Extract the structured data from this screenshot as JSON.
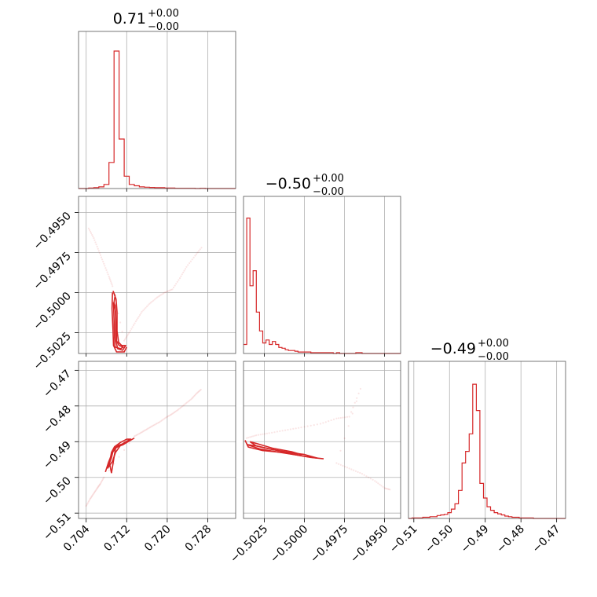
{
  "chart_data": {
    "type": "corner",
    "series_color": "#d62728",
    "grid": true,
    "panel_titles": [
      {
        "main": "0.71",
        "sup": "+0.00",
        "sub": "−0.00"
      },
      {
        "main": "−0.50",
        "sup": "+0.00",
        "sub": "−0.00"
      },
      {
        "main": "−0.49",
        "sup": "+0.00",
        "sub": "−0.00"
      }
    ],
    "params": [
      {
        "range": [
          0.7025,
          0.7335
        ],
        "ticks": [
          0.704,
          0.712,
          0.72,
          0.728
        ],
        "tick_labels": [
          "0.704",
          "0.712",
          "0.720",
          "0.728"
        ]
      },
      {
        "range": [
          -0.5038,
          -0.494
        ],
        "ticks": [
          -0.5025,
          -0.5,
          -0.4975,
          -0.495
        ],
        "tick_labels": [
          "−0.5025",
          "−0.5000",
          "−0.4975",
          "−0.4950"
        ]
      },
      {
        "range": [
          -0.5115,
          -0.4675
        ],
        "ticks": [
          -0.51,
          -0.5,
          -0.49,
          -0.48,
          -0.47
        ],
        "tick_labels": [
          "−0.51",
          "−0.50",
          "−0.49",
          "−0.48",
          "−0.47"
        ]
      }
    ],
    "histograms": [
      {
        "param": 0,
        "bins": [
          0.7025,
          0.7035,
          0.7045,
          0.7055,
          0.7065,
          0.7075,
          0.7085,
          0.7095,
          0.7105,
          0.7115,
          0.7125,
          0.7135,
          0.7145,
          0.7155,
          0.7165,
          0.7175,
          0.7185,
          0.7195,
          0.7205,
          0.7215,
          0.7225,
          0.7235,
          0.7245,
          0.7255,
          0.7265,
          0.7275,
          0.7285,
          0.7295,
          0.7305,
          0.7315,
          0.7325,
          0.7335
        ],
        "counts": [
          0,
          0,
          2,
          3,
          6,
          15,
          95,
          500,
          180,
          45,
          15,
          10,
          6,
          5,
          4,
          3,
          3,
          2,
          2,
          1,
          1,
          1,
          1,
          0,
          1,
          0,
          0,
          0,
          0,
          0,
          0
        ],
        "ymax": 520
      },
      {
        "param": 1,
        "bins": [
          -0.5038,
          -0.5036,
          -0.5034,
          -0.5032,
          -0.503,
          -0.5028,
          -0.5026,
          -0.5024,
          -0.5022,
          -0.502,
          -0.5018,
          -0.5016,
          -0.5014,
          -0.5012,
          -0.501,
          -0.5008,
          -0.5006,
          -0.5004,
          -0.5002,
          -0.5,
          -0.4998,
          -0.4996,
          -0.4994,
          -0.4992,
          -0.499,
          -0.4988,
          -0.4986,
          -0.4984,
          -0.4982,
          -0.498,
          -0.4978,
          -0.4976,
          -0.4974,
          -0.4972,
          -0.497,
          -0.4968,
          -0.4966,
          -0.4964,
          -0.4962,
          -0.496,
          -0.4958,
          -0.4956,
          -0.4954,
          -0.4952,
          -0.495,
          -0.4948,
          -0.4946,
          -0.4944,
          -0.4942,
          -0.494
        ],
        "counts": [
          12,
          180,
          90,
          110,
          55,
          30,
          14,
          18,
          12,
          16,
          12,
          8,
          7,
          5,
          4,
          4,
          3,
          2,
          2,
          2,
          2,
          1,
          1,
          1,
          1,
          1,
          1,
          1,
          0,
          1,
          0,
          0,
          0,
          0,
          0,
          1,
          1,
          0,
          0,
          0,
          0,
          0,
          0,
          0,
          0,
          0,
          0,
          0,
          0
        ],
        "ymax": 190
      },
      {
        "param": 2,
        "bins": [
          -0.5115,
          -0.5105,
          -0.5095,
          -0.5085,
          -0.5075,
          -0.5065,
          -0.5055,
          -0.5045,
          -0.5035,
          -0.5025,
          -0.5015,
          -0.5005,
          -0.4995,
          -0.4985,
          -0.4975,
          -0.4965,
          -0.4955,
          -0.4945,
          -0.4935,
          -0.4925,
          -0.4915,
          -0.4905,
          -0.4895,
          -0.4885,
          -0.4875,
          -0.4865,
          -0.4855,
          -0.4845,
          -0.4835,
          -0.4825,
          -0.4815,
          -0.4805,
          -0.4795,
          -0.4785,
          -0.4775,
          -0.4765,
          -0.4755,
          -0.4745,
          -0.4735,
          -0.4725,
          -0.4715,
          -0.4705,
          -0.4695,
          -0.4685,
          -0.4675
        ],
        "counts": [
          0,
          1,
          1,
          1,
          2,
          2,
          3,
          3,
          5,
          6,
          7,
          10,
          16,
          25,
          48,
          95,
          115,
          145,
          230,
          185,
          60,
          35,
          20,
          14,
          10,
          8,
          6,
          4,
          3,
          2,
          2,
          1,
          1,
          1,
          1,
          0,
          0,
          0,
          0,
          0,
          0,
          0,
          0,
          0
        ],
        "ymax": 245
      }
    ],
    "pairs": [
      {
        "x_param": 0,
        "y_param": 1,
        "contours": [
          [
            [
              0.7093,
              -0.4999
            ],
            [
              0.7097,
              -0.5002
            ],
            [
              0.7095,
              -0.5006
            ],
            [
              0.7098,
              -0.5012
            ],
            [
              0.7098,
              -0.502
            ],
            [
              0.7099,
              -0.503
            ],
            [
              0.7102,
              -0.5035
            ],
            [
              0.7112,
              -0.5036
            ],
            [
              0.7118,
              -0.5033
            ],
            [
              0.711,
              -0.5033
            ],
            [
              0.7104,
              -0.5031
            ],
            [
              0.7101,
              -0.5024
            ],
            [
              0.7101,
              -0.5012
            ],
            [
              0.7099,
              -0.5004
            ],
            [
              0.7093,
              -0.4999
            ]
          ],
          [
            [
              0.7094,
              -0.5006
            ],
            [
              0.7095,
              -0.5018
            ],
            [
              0.7096,
              -0.5028
            ],
            [
              0.7097,
              -0.5034
            ],
            [
              0.7108,
              -0.5035
            ],
            [
              0.7113,
              -0.5034
            ],
            [
              0.7105,
              -0.5033
            ],
            [
              0.71,
              -0.503
            ],
            [
              0.7099,
              -0.5018
            ],
            [
              0.7097,
              -0.5008
            ],
            [
              0.7094,
              -0.5006
            ]
          ],
          [
            [
              0.7092,
              -0.5
            ],
            [
              0.7091,
              -0.501
            ],
            [
              0.7093,
              -0.5024
            ],
            [
              0.7094,
              -0.5033
            ],
            [
              0.71,
              -0.5037
            ],
            [
              0.7115,
              -0.5037
            ],
            [
              0.712,
              -0.5034
            ]
          ]
        ],
        "tail": [
          [
            0.7045,
            -0.496
          ],
          [
            0.7055,
            -0.4966
          ],
          [
            0.7065,
            -0.4974
          ],
          [
            0.7075,
            -0.4982
          ],
          [
            0.7085,
            -0.499
          ],
          [
            0.7092,
            -0.4996
          ],
          [
            0.7115,
            -0.503
          ],
          [
            0.7125,
            -0.5025
          ],
          [
            0.7138,
            -0.5018
          ],
          [
            0.715,
            -0.5012
          ],
          [
            0.7165,
            -0.5007
          ],
          [
            0.718,
            -0.5003
          ],
          [
            0.7195,
            -0.5
          ],
          [
            0.721,
            -0.4998
          ],
          [
            0.7225,
            -0.4991
          ],
          [
            0.7238,
            -0.4984
          ],
          [
            0.7255,
            -0.4977
          ],
          [
            0.727,
            -0.4971
          ]
        ]
      },
      {
        "x_param": 0,
        "y_param": 2,
        "contours": [
          [
            [
              0.709,
              -0.4988
            ],
            [
              0.7098,
              -0.4918
            ],
            [
              0.711,
              -0.4908
            ],
            [
              0.7118,
              -0.49
            ],
            [
              0.7128,
              -0.4893
            ],
            [
              0.712,
              -0.4893
            ],
            [
              0.7108,
              -0.4902
            ],
            [
              0.7096,
              -0.4914
            ],
            [
              0.709,
              -0.493
            ],
            [
              0.7086,
              -0.496
            ],
            [
              0.709,
              -0.4988
            ]
          ],
          [
            [
              0.7082,
              -0.4975
            ],
            [
              0.709,
              -0.4945
            ],
            [
              0.7094,
              -0.492
            ],
            [
              0.7104,
              -0.491
            ],
            [
              0.7115,
              -0.4905
            ],
            [
              0.7108,
              -0.491
            ],
            [
              0.7098,
              -0.493
            ],
            [
              0.7092,
              -0.4955
            ],
            [
              0.7082,
              -0.4975
            ]
          ],
          [
            [
              0.7078,
              -0.4985
            ],
            [
              0.7084,
              -0.4958
            ],
            [
              0.7092,
              -0.493
            ],
            [
              0.71,
              -0.4915
            ],
            [
              0.7112,
              -0.4909
            ],
            [
              0.7125,
              -0.4898
            ],
            [
              0.7135,
              -0.489
            ]
          ]
        ],
        "tail": [
          [
            0.704,
            -0.508
          ],
          [
            0.7048,
            -0.506
          ],
          [
            0.7055,
            -0.5045
          ],
          [
            0.7062,
            -0.503
          ],
          [
            0.7068,
            -0.5018
          ],
          [
            0.7075,
            -0.5
          ],
          [
            0.7135,
            -0.4885
          ],
          [
            0.7148,
            -0.4875
          ],
          [
            0.716,
            -0.4865
          ],
          [
            0.7172,
            -0.4855
          ],
          [
            0.7185,
            -0.4845
          ],
          [
            0.7198,
            -0.4832
          ],
          [
            0.721,
            -0.4822
          ],
          [
            0.7222,
            -0.481
          ],
          [
            0.7235,
            -0.4795
          ],
          [
            0.7248,
            -0.478
          ],
          [
            0.7258,
            -0.4765
          ],
          [
            0.7268,
            -0.4752
          ]
        ]
      },
      {
        "x_param": 1,
        "y_param": 2,
        "contours": [
          [
            [
              -0.5036,
              -0.4908
            ],
            [
              -0.5028,
              -0.492
            ],
            [
              -0.5018,
              -0.4928
            ],
            [
              -0.5008,
              -0.4935
            ],
            [
              -0.4998,
              -0.4942
            ],
            [
              -0.4992,
              -0.4946
            ],
            [
              -0.5,
              -0.4936
            ],
            [
              -0.501,
              -0.493
            ],
            [
              -0.5022,
              -0.492
            ],
            [
              -0.503,
              -0.4912
            ],
            [
              -0.5036,
              -0.4908
            ]
          ],
          [
            [
              -0.5034,
              -0.49
            ],
            [
              -0.503,
              -0.4912
            ],
            [
              -0.502,
              -0.4922
            ],
            [
              -0.501,
              -0.493
            ],
            [
              -0.5002,
              -0.4936
            ],
            [
              -0.5008,
              -0.4928
            ],
            [
              -0.502,
              -0.4918
            ],
            [
              -0.503,
              -0.4905
            ],
            [
              -0.5034,
              -0.49
            ]
          ],
          [
            [
              -0.5037,
              -0.4896
            ],
            [
              -0.5035,
              -0.4915
            ],
            [
              -0.5026,
              -0.4925
            ],
            [
              -0.5014,
              -0.493
            ],
            [
              -0.5004,
              -0.4938
            ],
            [
              -0.4996,
              -0.4944
            ],
            [
              -0.4988,
              -0.4948
            ]
          ]
        ],
        "tail": [
          [
            -0.5036,
            -0.489
          ],
          [
            -0.503,
            -0.4882
          ],
          [
            -0.5022,
            -0.4876
          ],
          [
            -0.5012,
            -0.4868
          ],
          [
            -0.5002,
            -0.486
          ],
          [
            -0.499,
            -0.485
          ],
          [
            -0.498,
            -0.4835
          ],
          [
            -0.4972,
            -0.483
          ],
          [
            -0.4965,
            -0.4752
          ],
          [
            -0.498,
            -0.496
          ],
          [
            -0.4972,
            -0.4975
          ],
          [
            -0.4964,
            -0.499
          ],
          [
            -0.4956,
            -0.501
          ],
          [
            -0.495,
            -0.503
          ],
          [
            -0.4946,
            -0.5035
          ]
        ]
      }
    ]
  }
}
